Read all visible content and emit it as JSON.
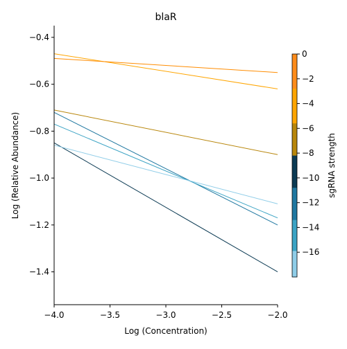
{
  "chart_data": {
    "type": "line",
    "title": "blaR",
    "xlabel": "Log (Concentration)",
    "ylabel": "Log (Relative Abundance)",
    "xlim": [
      -4.0,
      -2.0
    ],
    "ylim": [
      -1.54,
      -0.35
    ],
    "xticks": [
      -4.0,
      -3.5,
      -3.0,
      -2.5,
      -2.0
    ],
    "xtick_labels": [
      "−4.0",
      "−3.5",
      "−3.0",
      "−2.5",
      "−2.0"
    ],
    "yticks": [
      -1.4,
      -1.2,
      -1.0,
      -0.8,
      -0.6,
      -0.4
    ],
    "ytick_labels": [
      "−1.4",
      "−1.2",
      "−1.0",
      "−0.8",
      "−0.6",
      "−0.4"
    ],
    "grid": false,
    "series": [
      {
        "x": [
          -4.0,
          -2.0
        ],
        "y": [
          -0.47,
          -0.62
        ],
        "color": "#ffa500"
      },
      {
        "x": [
          -4.0,
          -2.0
        ],
        "y": [
          -0.49,
          -0.55
        ],
        "color": "#ff8c00"
      },
      {
        "x": [
          -4.0,
          -2.0
        ],
        "y": [
          -0.71,
          -0.9
        ],
        "color": "#b8860b"
      },
      {
        "x": [
          -4.0,
          -2.0
        ],
        "y": [
          -0.72,
          -1.2
        ],
        "color": "#1f77a0"
      },
      {
        "x": [
          -4.0,
          -2.0
        ],
        "y": [
          -0.77,
          -1.17
        ],
        "color": "#3ba3c4"
      },
      {
        "x": [
          -4.0,
          -2.0
        ],
        "y": [
          -0.85,
          -1.4
        ],
        "color": "#0b3a53"
      },
      {
        "x": [
          -4.0,
          -2.0
        ],
        "y": [
          -0.86,
          -1.11
        ],
        "color": "#8fcde8"
      }
    ],
    "colorbar": {
      "label": "sgRNA strength",
      "range": [
        -18,
        0
      ],
      "ticks": [
        0,
        -2,
        -4,
        -6,
        -8,
        -10,
        -12,
        -14,
        -16
      ],
      "tick_labels": [
        "0",
        "−2",
        "−4",
        "−6",
        "−8",
        "−10",
        "−12",
        "−14",
        "−16"
      ],
      "bands": [
        {
          "from": 0,
          "to": -2.8,
          "color": "#ff8c1a"
        },
        {
          "from": -2.8,
          "to": -5.6,
          "color": "#ffa500"
        },
        {
          "from": -5.6,
          "to": -8.2,
          "color": "#b8860b"
        },
        {
          "from": -8.2,
          "to": -10.8,
          "color": "#0b3a53"
        },
        {
          "from": -10.8,
          "to": -13.4,
          "color": "#1f77a0"
        },
        {
          "from": -13.4,
          "to": -15.9,
          "color": "#3ba3c4"
        },
        {
          "from": -15.9,
          "to": -18,
          "color": "#8fcde8"
        }
      ]
    }
  }
}
